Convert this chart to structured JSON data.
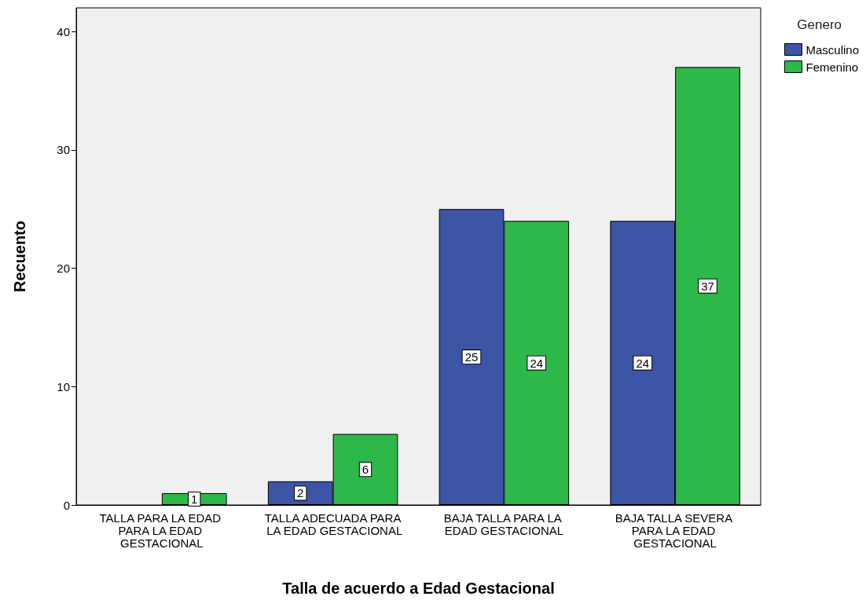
{
  "chart_data": {
    "type": "bar",
    "xlabel": "Talla de acuerdo a Edad Gestacional",
    "ylabel": "Recuento",
    "legend_title": "Genero",
    "categories": [
      "TALLA PARA LA EDAD PARA LA EDAD GESTACIONAL",
      "TALLA ADECUADA PARA LA EDAD GESTACIONAL",
      "BAJA TALLA PARA LA EDAD GESTACIONAL",
      "BAJA TALLA SEVERA PARA LA EDAD GESTACIONAL"
    ],
    "series": [
      {
        "name": "Masculino",
        "color": "#3c55a5",
        "values": [
          null,
          2,
          25,
          24
        ]
      },
      {
        "name": "Femenino",
        "color": "#2db84a",
        "values": [
          1,
          6,
          24,
          37
        ]
      }
    ],
    "ylim": [
      0,
      42
    ],
    "yticks": [
      0,
      10,
      20,
      30,
      40
    ],
    "grid": false,
    "legend": "top right",
    "data_labels": true
  }
}
